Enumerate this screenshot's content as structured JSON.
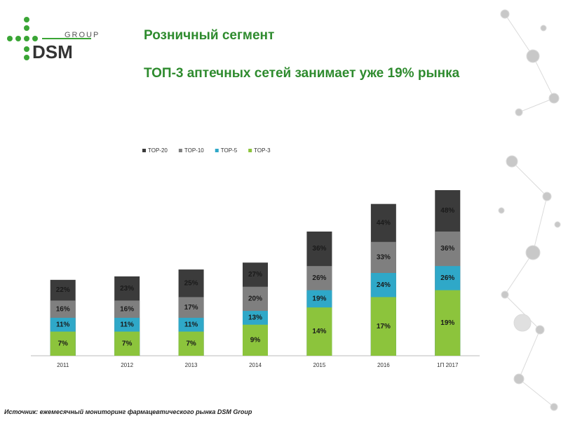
{
  "logo": {
    "group": "GROUP",
    "name": "DSM"
  },
  "chart_data": {
    "type": "bar",
    "title": "Розничный сегмент",
    "subtitle": "ТОП-3 аптечных сетей занимает уже 19% рынка",
    "source": "Источник: ежемесячный мониторинг фармацевтического рынка DSM Group",
    "categories": [
      "2011",
      "2012",
      "2013",
      "2014",
      "2015",
      "2016",
      "1П 2017"
    ],
    "series": [
      {
        "name": "TOP-20",
        "color": "#3b3b3b",
        "values": [
          22,
          23,
          25,
          27,
          36,
          44,
          48
        ],
        "value_labels": [
          "22%",
          "23%",
          "25%",
          "27%",
          "36%",
          "44%",
          "48%"
        ]
      },
      {
        "name": "TOP-10",
        "color": "#7f7f7f",
        "values": [
          16,
          16,
          17,
          20,
          26,
          33,
          36
        ],
        "value_labels": [
          "16%",
          "16%",
          "17%",
          "20%",
          "26%",
          "33%",
          "36%"
        ]
      },
      {
        "name": "TOP-5",
        "color": "#2fa8c8",
        "values": [
          11,
          11,
          11,
          13,
          19,
          24,
          26
        ],
        "value_labels": [
          "11%",
          "11%",
          "11%",
          "13%",
          "19%",
          "24%",
          "26%"
        ]
      },
      {
        "name": "TOP-3",
        "color": "#8cc43c",
        "values": [
          7,
          7,
          7,
          9,
          14,
          17,
          19
        ],
        "value_labels": [
          "7%",
          "7%",
          "7%",
          "9%",
          "14%",
          "17%",
          "19%"
        ]
      }
    ],
    "legend": "top-left"
  }
}
